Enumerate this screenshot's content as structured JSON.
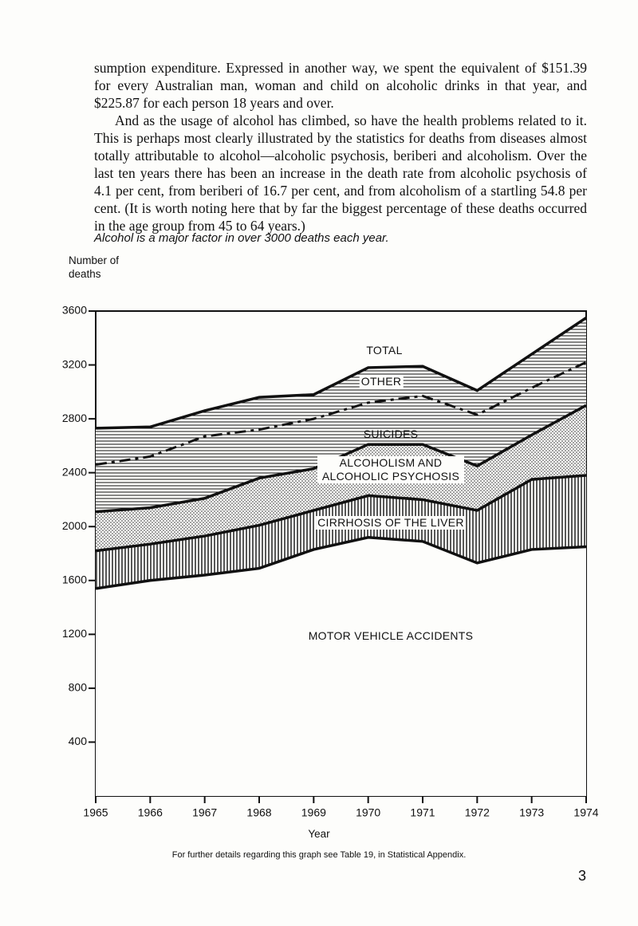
{
  "paragraphs": [
    "sumption expenditure. Expressed in another way, we spent the equivalent of $151.39 for every Australian man, woman and child on alcoholic drinks in that year, and $225.87 for each person 18 years and over.",
    "And as the usage of alcohol has climbed, so have the health problems related to it. This is perhaps most clearly illustrated by the statistics for deaths from diseases almost totally attributable to alcohol—alcoholic psychosis, beriberi and alcoholism. Over the last ten years there has been an increase in the death rate from alcoholic psychosis of 4.1 per cent, from beriberi of 16.7 per cent, and from alcoholism of a startling 54.8 per cent. (It is worth noting here that by far the biggest percentage of these deaths occurred in the age group from 45 to 64 years.)"
  ],
  "chart_data": {
    "type": "stacked-area",
    "title": "Alcohol is a major factor in over 3000 deaths each year.",
    "y_label": "Number of deaths",
    "x_label": "Year",
    "total_label": "TOTAL",
    "note": "For further details regarding this graph see Table 19, in Statistical Appendix.",
    "x": [
      1965,
      1966,
      1967,
      1968,
      1969,
      1970,
      1971,
      1972,
      1973,
      1974
    ],
    "xlim": [
      1965,
      1974
    ],
    "xticks": [
      1965,
      1966,
      1967,
      1968,
      1969,
      1970,
      1971,
      1972,
      1973,
      1974
    ],
    "ylim": [
      0,
      3600
    ],
    "yticks": [
      400,
      800,
      1200,
      1600,
      2000,
      2400,
      2800,
      3200,
      3600
    ],
    "series": [
      {
        "name": "MOTOR VEHICLE ACCIDENTS",
        "pattern": "none",
        "line_style": "solid",
        "values": [
          1540,
          1600,
          1640,
          1690,
          1830,
          1920,
          1890,
          1730,
          1830,
          1850
        ]
      },
      {
        "name": "CIRRHOSIS OF THE LIVER",
        "pattern": "vertical-lines",
        "line_style": "solid",
        "values": [
          280,
          270,
          290,
          320,
          290,
          310,
          310,
          390,
          520,
          530
        ]
      },
      {
        "name": "ALCOHOLISM AND ALCOHOLIC PSYCHOSIS",
        "pattern": "dots",
        "line_style": "solid",
        "values": [
          290,
          270,
          280,
          350,
          310,
          380,
          410,
          330,
          330,
          520
        ]
      },
      {
        "name": "SUICIDES",
        "pattern": "horizontal-lines",
        "line_style": "dashed",
        "values": [
          350,
          380,
          460,
          360,
          370,
          310,
          360,
          380,
          350,
          320
        ]
      },
      {
        "name": "OTHER",
        "pattern": "horizontal-lines",
        "line_style": "solid",
        "values": [
          270,
          220,
          190,
          240,
          180,
          260,
          220,
          180,
          250,
          330
        ]
      }
    ]
  },
  "page_number": "3"
}
